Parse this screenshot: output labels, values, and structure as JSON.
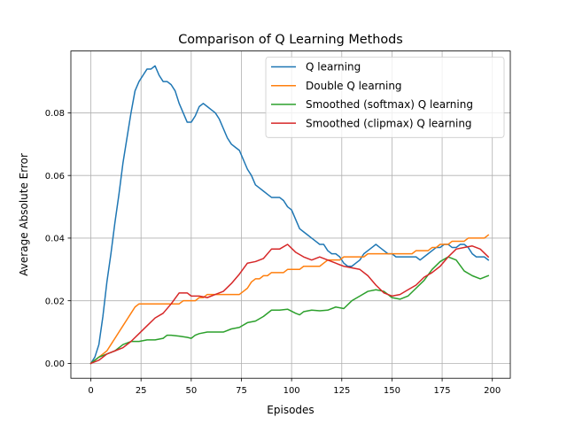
{
  "chart_data": {
    "type": "line",
    "title": "Comparison of Q Learning Methods",
    "xlabel": "Episodes",
    "ylabel": "Average Absolute Error",
    "xlim": [
      -9.95,
      208.95
    ],
    "ylim": [
      -0.00475,
      0.09975
    ],
    "xticks": [
      0,
      25,
      50,
      75,
      100,
      125,
      150,
      175,
      200
    ],
    "xtick_labels": [
      "0",
      "25",
      "50",
      "75",
      "100",
      "125",
      "150",
      "175",
      "200"
    ],
    "yticks": [
      0.0,
      0.02,
      0.04,
      0.06,
      0.08
    ],
    "ytick_labels": [
      "0.00",
      "0.02",
      "0.04",
      "0.06",
      "0.08"
    ],
    "grid": true,
    "legend_position": "top-right",
    "series": [
      {
        "name": "Q learning",
        "color": "#1f77b4",
        "points": [
          [
            0,
            0
          ],
          [
            2,
            0.002
          ],
          [
            4,
            0.006
          ],
          [
            6,
            0.015
          ],
          [
            8,
            0.026
          ],
          [
            10,
            0.035
          ],
          [
            12,
            0.045
          ],
          [
            14,
            0.054
          ],
          [
            16,
            0.064
          ],
          [
            18,
            0.072
          ],
          [
            20,
            0.08
          ],
          [
            22,
            0.087
          ],
          [
            24,
            0.09
          ],
          [
            26,
            0.092
          ],
          [
            28,
            0.094
          ],
          [
            30,
            0.094
          ],
          [
            32,
            0.095
          ],
          [
            34,
            0.092
          ],
          [
            36,
            0.09
          ],
          [
            38,
            0.09
          ],
          [
            40,
            0.089
          ],
          [
            42,
            0.087
          ],
          [
            44,
            0.083
          ],
          [
            46,
            0.08
          ],
          [
            48,
            0.077
          ],
          [
            50,
            0.077
          ],
          [
            52,
            0.079
          ],
          [
            54,
            0.082
          ],
          [
            56,
            0.083
          ],
          [
            58,
            0.082
          ],
          [
            60,
            0.081
          ],
          [
            62,
            0.08
          ],
          [
            64,
            0.078
          ],
          [
            66,
            0.075
          ],
          [
            68,
            0.072
          ],
          [
            70,
            0.07
          ],
          [
            72,
            0.069
          ],
          [
            74,
            0.068
          ],
          [
            76,
            0.065
          ],
          [
            78,
            0.062
          ],
          [
            80,
            0.06
          ],
          [
            82,
            0.057
          ],
          [
            84,
            0.056
          ],
          [
            86,
            0.055
          ],
          [
            88,
            0.054
          ],
          [
            90,
            0.053
          ],
          [
            92,
            0.053
          ],
          [
            94,
            0.053
          ],
          [
            96,
            0.052
          ],
          [
            98,
            0.05
          ],
          [
            100,
            0.049
          ],
          [
            102,
            0.046
          ],
          [
            104,
            0.043
          ],
          [
            106,
            0.042
          ],
          [
            108,
            0.041
          ],
          [
            110,
            0.04
          ],
          [
            112,
            0.039
          ],
          [
            114,
            0.038
          ],
          [
            116,
            0.038
          ],
          [
            118,
            0.036
          ],
          [
            120,
            0.035
          ],
          [
            122,
            0.035
          ],
          [
            124,
            0.034
          ],
          [
            126,
            0.032
          ],
          [
            128,
            0.031
          ],
          [
            130,
            0.031
          ],
          [
            132,
            0.032
          ],
          [
            134,
            0.033
          ],
          [
            136,
            0.035
          ],
          [
            138,
            0.036
          ],
          [
            140,
            0.037
          ],
          [
            142,
            0.038
          ],
          [
            144,
            0.037
          ],
          [
            146,
            0.036
          ],
          [
            148,
            0.035
          ],
          [
            150,
            0.035
          ],
          [
            152,
            0.034
          ],
          [
            154,
            0.034
          ],
          [
            156,
            0.034
          ],
          [
            158,
            0.034
          ],
          [
            160,
            0.034
          ],
          [
            162,
            0.034
          ],
          [
            164,
            0.033
          ],
          [
            166,
            0.034
          ],
          [
            168,
            0.035
          ],
          [
            170,
            0.036
          ],
          [
            172,
            0.037
          ],
          [
            174,
            0.037
          ],
          [
            176,
            0.038
          ],
          [
            178,
            0.038
          ],
          [
            180,
            0.037
          ],
          [
            182,
            0.037
          ],
          [
            184,
            0.038
          ],
          [
            186,
            0.038
          ],
          [
            188,
            0.037
          ],
          [
            190,
            0.035
          ],
          [
            192,
            0.034
          ],
          [
            194,
            0.034
          ],
          [
            196,
            0.034
          ],
          [
            198,
            0.033
          ]
        ]
      },
      {
        "name": "Double Q learning",
        "color": "#ff7f0e",
        "points": [
          [
            0,
            0
          ],
          [
            2,
            0.001
          ],
          [
            4,
            0.002
          ],
          [
            6,
            0.003
          ],
          [
            8,
            0.004
          ],
          [
            10,
            0.006
          ],
          [
            12,
            0.008
          ],
          [
            14,
            0.01
          ],
          [
            16,
            0.012
          ],
          [
            18,
            0.014
          ],
          [
            20,
            0.016
          ],
          [
            22,
            0.018
          ],
          [
            24,
            0.019
          ],
          [
            26,
            0.019
          ],
          [
            28,
            0.019
          ],
          [
            30,
            0.019
          ],
          [
            32,
            0.019
          ],
          [
            34,
            0.019
          ],
          [
            36,
            0.019
          ],
          [
            38,
            0.019
          ],
          [
            40,
            0.019
          ],
          [
            42,
            0.019
          ],
          [
            44,
            0.019
          ],
          [
            46,
            0.02
          ],
          [
            48,
            0.02
          ],
          [
            50,
            0.02
          ],
          [
            52,
            0.02
          ],
          [
            54,
            0.021
          ],
          [
            56,
            0.021
          ],
          [
            58,
            0.022
          ],
          [
            60,
            0.022
          ],
          [
            62,
            0.022
          ],
          [
            64,
            0.022
          ],
          [
            66,
            0.022
          ],
          [
            68,
            0.022
          ],
          [
            70,
            0.022
          ],
          [
            72,
            0.022
          ],
          [
            74,
            0.022
          ],
          [
            76,
            0.023
          ],
          [
            78,
            0.024
          ],
          [
            80,
            0.026
          ],
          [
            82,
            0.027
          ],
          [
            84,
            0.027
          ],
          [
            86,
            0.028
          ],
          [
            88,
            0.028
          ],
          [
            90,
            0.029
          ],
          [
            92,
            0.029
          ],
          [
            94,
            0.029
          ],
          [
            96,
            0.029
          ],
          [
            98,
            0.03
          ],
          [
            100,
            0.03
          ],
          [
            102,
            0.03
          ],
          [
            104,
            0.03
          ],
          [
            106,
            0.031
          ],
          [
            108,
            0.031
          ],
          [
            110,
            0.031
          ],
          [
            112,
            0.031
          ],
          [
            114,
            0.031
          ],
          [
            116,
            0.032
          ],
          [
            118,
            0.033
          ],
          [
            120,
            0.033
          ],
          [
            122,
            0.033
          ],
          [
            124,
            0.033
          ],
          [
            126,
            0.034
          ],
          [
            128,
            0.034
          ],
          [
            130,
            0.034
          ],
          [
            132,
            0.034
          ],
          [
            134,
            0.034
          ],
          [
            136,
            0.034
          ],
          [
            138,
            0.035
          ],
          [
            140,
            0.035
          ],
          [
            142,
            0.035
          ],
          [
            144,
            0.035
          ],
          [
            146,
            0.035
          ],
          [
            148,
            0.035
          ],
          [
            150,
            0.035
          ],
          [
            152,
            0.035
          ],
          [
            154,
            0.035
          ],
          [
            156,
            0.035
          ],
          [
            158,
            0.035
          ],
          [
            160,
            0.035
          ],
          [
            162,
            0.036
          ],
          [
            164,
            0.036
          ],
          [
            166,
            0.036
          ],
          [
            168,
            0.036
          ],
          [
            170,
            0.037
          ],
          [
            172,
            0.037
          ],
          [
            174,
            0.038
          ],
          [
            176,
            0.038
          ],
          [
            178,
            0.038
          ],
          [
            180,
            0.039
          ],
          [
            182,
            0.039
          ],
          [
            184,
            0.039
          ],
          [
            186,
            0.039
          ],
          [
            188,
            0.04
          ],
          [
            190,
            0.04
          ],
          [
            192,
            0.04
          ],
          [
            194,
            0.04
          ],
          [
            196,
            0.04
          ],
          [
            198,
            0.041
          ]
        ]
      },
      {
        "name": "Smoothed (softmax) Q learning",
        "color": "#2ca02c",
        "points": [
          [
            0,
            0
          ],
          [
            4,
            0.002
          ],
          [
            8,
            0.003
          ],
          [
            12,
            0.004
          ],
          [
            16,
            0.006
          ],
          [
            20,
            0.007
          ],
          [
            24,
            0.007
          ],
          [
            28,
            0.0075
          ],
          [
            32,
            0.0075
          ],
          [
            36,
            0.008
          ],
          [
            38,
            0.009
          ],
          [
            40,
            0.009
          ],
          [
            44,
            0.0087
          ],
          [
            48,
            0.0083
          ],
          [
            50,
            0.008
          ],
          [
            52,
            0.009
          ],
          [
            54,
            0.0095
          ],
          [
            58,
            0.01
          ],
          [
            62,
            0.01
          ],
          [
            66,
            0.01
          ],
          [
            70,
            0.011
          ],
          [
            74,
            0.0115
          ],
          [
            78,
            0.013
          ],
          [
            82,
            0.0135
          ],
          [
            86,
            0.015
          ],
          [
            90,
            0.017
          ],
          [
            94,
            0.017
          ],
          [
            98,
            0.0173
          ],
          [
            102,
            0.016
          ],
          [
            104,
            0.0155
          ],
          [
            106,
            0.0165
          ],
          [
            110,
            0.017
          ],
          [
            114,
            0.0168
          ],
          [
            118,
            0.017
          ],
          [
            122,
            0.018
          ],
          [
            126,
            0.0175
          ],
          [
            130,
            0.02
          ],
          [
            134,
            0.0215
          ],
          [
            138,
            0.023
          ],
          [
            142,
            0.0235
          ],
          [
            146,
            0.023
          ],
          [
            150,
            0.021
          ],
          [
            154,
            0.0205
          ],
          [
            158,
            0.0215
          ],
          [
            162,
            0.024
          ],
          [
            166,
            0.0265
          ],
          [
            170,
            0.03
          ],
          [
            174,
            0.0325
          ],
          [
            178,
            0.034
          ],
          [
            182,
            0.033
          ],
          [
            186,
            0.0295
          ],
          [
            190,
            0.028
          ],
          [
            194,
            0.027
          ],
          [
            198,
            0.028
          ]
        ]
      },
      {
        "name": "Smoothed (clipmax) Q learning",
        "color": "#d62728",
        "points": [
          [
            0,
            0
          ],
          [
            4,
            0.001
          ],
          [
            8,
            0.003
          ],
          [
            12,
            0.004
          ],
          [
            16,
            0.005
          ],
          [
            20,
            0.007
          ],
          [
            24,
            0.0095
          ],
          [
            28,
            0.012
          ],
          [
            32,
            0.0145
          ],
          [
            36,
            0.016
          ],
          [
            40,
            0.019
          ],
          [
            44,
            0.0225
          ],
          [
            48,
            0.0225
          ],
          [
            50,
            0.0215
          ],
          [
            54,
            0.0215
          ],
          [
            58,
            0.021
          ],
          [
            62,
            0.022
          ],
          [
            66,
            0.023
          ],
          [
            70,
            0.0255
          ],
          [
            74,
            0.0285
          ],
          [
            78,
            0.032
          ],
          [
            82,
            0.0325
          ],
          [
            86,
            0.0335
          ],
          [
            90,
            0.0365
          ],
          [
            94,
            0.0365
          ],
          [
            98,
            0.038
          ],
          [
            102,
            0.0355
          ],
          [
            106,
            0.034
          ],
          [
            110,
            0.033
          ],
          [
            114,
            0.034
          ],
          [
            118,
            0.033
          ],
          [
            122,
            0.032
          ],
          [
            126,
            0.031
          ],
          [
            130,
            0.0305
          ],
          [
            134,
            0.03
          ],
          [
            138,
            0.028
          ],
          [
            142,
            0.025
          ],
          [
            146,
            0.0225
          ],
          [
            150,
            0.0215
          ],
          [
            154,
            0.022
          ],
          [
            158,
            0.0235
          ],
          [
            162,
            0.025
          ],
          [
            166,
            0.0275
          ],
          [
            170,
            0.029
          ],
          [
            174,
            0.031
          ],
          [
            178,
            0.034
          ],
          [
            182,
            0.0365
          ],
          [
            186,
            0.037
          ],
          [
            190,
            0.0375
          ],
          [
            194,
            0.0365
          ],
          [
            198,
            0.034
          ]
        ]
      }
    ]
  }
}
